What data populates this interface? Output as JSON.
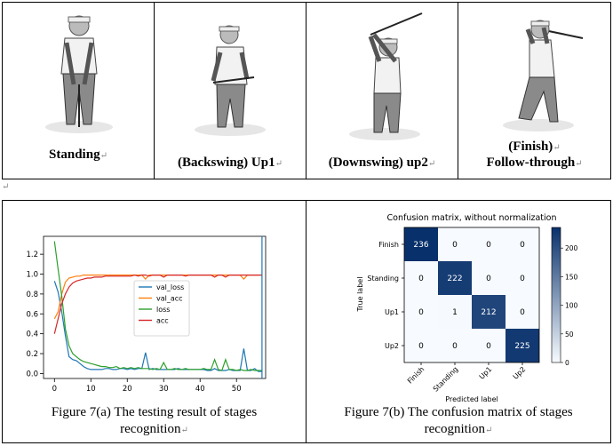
{
  "top_panels": [
    {
      "caption_lines": [
        "Standing"
      ]
    },
    {
      "caption_lines": [
        "(Backswing) Up1"
      ]
    },
    {
      "caption_lines": [
        "(Downswing) up2"
      ]
    },
    {
      "caption_lines": [
        "(Finish)",
        "Follow-through"
      ]
    }
  ],
  "paragraph_mark": "↵",
  "figure_a": {
    "caption_line1": "Figure 7(a) The testing result of stages",
    "caption_line2": "recognition"
  },
  "figure_b": {
    "caption_line1": "Figure 7(b) The confusion matrix of stages",
    "caption_line2": "recognition"
  },
  "chart_data": [
    {
      "type": "line",
      "title": "",
      "xlabel": "",
      "ylabel": "",
      "xlim": [
        -3,
        58
      ],
      "ylim": [
        -0.05,
        1.38
      ],
      "x_ticks": [
        0,
        10,
        20,
        30,
        40,
        50
      ],
      "y_ticks": [
        0.0,
        0.2,
        0.4,
        0.6,
        0.8,
        1.0,
        1.2
      ],
      "y_tick_labels": [
        "0.0",
        "0.2",
        "0.4",
        "0.6",
        "0.8",
        "1.0",
        "1.2"
      ],
      "vertical_line_x": 57,
      "legend_placement": "center",
      "series": [
        {
          "name": "val_loss",
          "color": "#1f77b4",
          "x": [
            0,
            1,
            2,
            3,
            4,
            5,
            6,
            7,
            8,
            9,
            10,
            11,
            12,
            13,
            14,
            15,
            16,
            17,
            18,
            19,
            20,
            21,
            22,
            23,
            24,
            25,
            26,
            27,
            28,
            29,
            30,
            31,
            32,
            33,
            34,
            35,
            36,
            37,
            38,
            39,
            40,
            41,
            42,
            43,
            44,
            45,
            46,
            47,
            48,
            49,
            50,
            51,
            52,
            53,
            54,
            55,
            56,
            57
          ],
          "y": [
            0.93,
            0.82,
            0.62,
            0.38,
            0.17,
            0.14,
            0.13,
            0.1,
            0.07,
            0.05,
            0.04,
            0.04,
            0.04,
            0.04,
            0.05,
            0.05,
            0.04,
            0.04,
            0.05,
            0.05,
            0.04,
            0.05,
            0.04,
            0.05,
            0.05,
            0.21,
            0.04,
            0.05,
            0.04,
            0.04,
            0.04,
            0.04,
            0.04,
            0.04,
            0.05,
            0.04,
            0.04,
            0.04,
            0.04,
            0.04,
            0.04,
            0.04,
            0.03,
            0.03,
            0.05,
            0.03,
            0.03,
            0.03,
            0.04,
            0.03,
            0.03,
            0.03,
            0.25,
            0.03,
            0.03,
            0.05,
            0.02,
            0.02
          ]
        },
        {
          "name": "val_acc",
          "color": "#ff7f0e",
          "x": [
            0,
            1,
            2,
            3,
            4,
            5,
            6,
            7,
            8,
            9,
            10,
            11,
            12,
            13,
            14,
            15,
            16,
            17,
            18,
            19,
            20,
            21,
            22,
            23,
            24,
            25,
            26,
            27,
            28,
            29,
            30,
            31,
            32,
            33,
            34,
            35,
            36,
            37,
            38,
            39,
            40,
            41,
            42,
            43,
            44,
            45,
            46,
            47,
            48,
            49,
            50,
            51,
            52,
            53,
            54,
            55,
            56,
            57
          ],
          "y": [
            0.55,
            0.62,
            0.8,
            0.92,
            0.96,
            0.97,
            0.98,
            0.98,
            0.99,
            0.99,
            0.99,
            0.99,
            0.99,
            0.99,
            0.99,
            0.99,
            0.99,
            0.99,
            0.99,
            0.99,
            0.99,
            0.99,
            0.99,
            0.99,
            0.99,
            0.95,
            0.99,
            0.99,
            0.99,
            0.99,
            0.99,
            0.99,
            0.99,
            0.99,
            0.99,
            0.99,
            0.99,
            0.99,
            0.99,
            0.99,
            0.99,
            0.99,
            0.99,
            0.99,
            0.99,
            0.99,
            0.99,
            0.99,
            0.99,
            0.99,
            0.99,
            0.99,
            0.95,
            0.99,
            0.99,
            0.99,
            0.99,
            0.99
          ]
        },
        {
          "name": "loss",
          "color": "#2ca02c",
          "x": [
            0,
            1,
            2,
            3,
            4,
            5,
            6,
            7,
            8,
            9,
            10,
            11,
            12,
            13,
            14,
            15,
            16,
            17,
            18,
            19,
            20,
            21,
            22,
            23,
            24,
            25,
            26,
            27,
            28,
            29,
            30,
            31,
            32,
            33,
            34,
            35,
            36,
            37,
            38,
            39,
            40,
            41,
            42,
            43,
            44,
            45,
            46,
            47,
            48,
            49,
            50,
            51,
            52,
            53,
            54,
            55,
            56,
            57
          ],
          "y": [
            1.33,
            1.05,
            0.78,
            0.45,
            0.28,
            0.2,
            0.17,
            0.14,
            0.12,
            0.11,
            0.1,
            0.09,
            0.08,
            0.07,
            0.07,
            0.06,
            0.06,
            0.07,
            0.05,
            0.06,
            0.05,
            0.06,
            0.05,
            0.06,
            0.05,
            0.05,
            0.05,
            0.04,
            0.05,
            0.04,
            0.11,
            0.04,
            0.04,
            0.05,
            0.04,
            0.04,
            0.05,
            0.04,
            0.04,
            0.04,
            0.04,
            0.05,
            0.04,
            0.04,
            0.14,
            0.04,
            0.03,
            0.14,
            0.04,
            0.04,
            0.03,
            0.04,
            0.03,
            0.03,
            0.04,
            0.03,
            0.03,
            0.03
          ]
        },
        {
          "name": "acc",
          "color": "#d62728",
          "x": [
            0,
            1,
            2,
            3,
            4,
            5,
            6,
            7,
            8,
            9,
            10,
            11,
            12,
            13,
            14,
            15,
            16,
            17,
            18,
            19,
            20,
            21,
            22,
            23,
            24,
            25,
            26,
            27,
            28,
            29,
            30,
            31,
            32,
            33,
            34,
            35,
            36,
            37,
            38,
            39,
            40,
            41,
            42,
            43,
            44,
            45,
            46,
            47,
            48,
            49,
            50,
            51,
            52,
            53,
            54,
            55,
            56,
            57
          ],
          "y": [
            0.4,
            0.55,
            0.7,
            0.8,
            0.87,
            0.91,
            0.93,
            0.94,
            0.95,
            0.96,
            0.96,
            0.97,
            0.97,
            0.97,
            0.98,
            0.98,
            0.98,
            0.98,
            0.98,
            0.98,
            0.98,
            0.98,
            0.99,
            0.98,
            0.99,
            0.99,
            0.98,
            0.99,
            0.99,
            0.99,
            0.97,
            0.99,
            0.99,
            0.99,
            0.99,
            0.99,
            0.98,
            0.99,
            0.99,
            0.99,
            0.99,
            0.99,
            0.99,
            0.99,
            0.97,
            0.99,
            0.99,
            0.97,
            0.99,
            0.99,
            0.99,
            0.99,
            0.99,
            0.99,
            0.99,
            0.99,
            0.99,
            0.99
          ]
        }
      ]
    },
    {
      "type": "heatmap",
      "title": "Confusion matrix, without normalization",
      "xlabel": "Predicted label",
      "ylabel": "True label",
      "row_labels": [
        "Finish",
        "Standing",
        "Up1",
        "Up2"
      ],
      "col_labels": [
        "Finish",
        "Standing",
        "Up1",
        "Up2"
      ],
      "values": [
        [
          236,
          0,
          0,
          0
        ],
        [
          0,
          222,
          0,
          0
        ],
        [
          0,
          1,
          212,
          0
        ],
        [
          0,
          0,
          0,
          225
        ]
      ],
      "colorbar_ticks": [
        0,
        50,
        100,
        150,
        200
      ],
      "vmin": 0,
      "vmax": 236
    }
  ]
}
